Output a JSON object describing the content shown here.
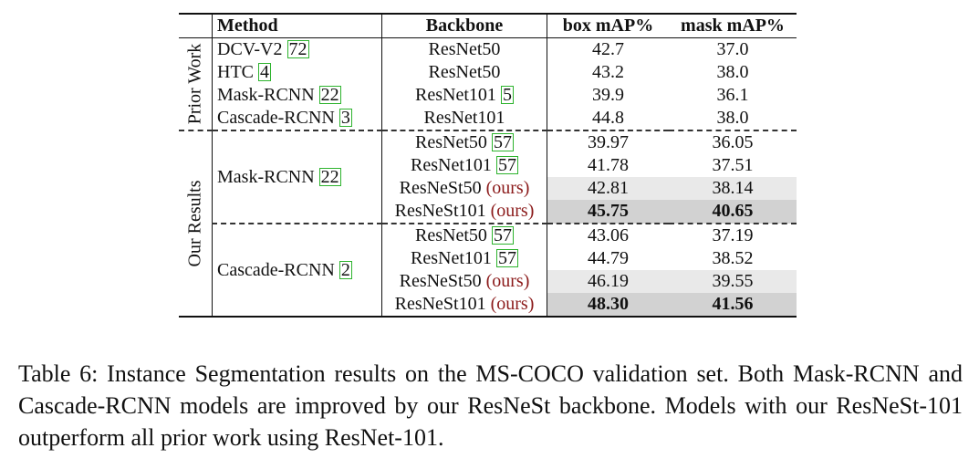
{
  "table": {
    "headers": {
      "method": "Method",
      "backbone": "Backbone",
      "box": "box mAP%",
      "mask": "mask mAP%"
    },
    "groups": {
      "prior": "Prior Work",
      "ours": "Our Results"
    },
    "prior_rows": [
      {
        "method": "DCV-V2",
        "cite": "72",
        "backbone": "ResNet50",
        "box": "42.7",
        "mask": "37.0"
      },
      {
        "method": "HTC",
        "cite": "4",
        "backbone": "ResNet50",
        "box": "43.2",
        "mask": "38.0"
      },
      {
        "method": "Mask-RCNN",
        "cite": "22",
        "backbone": "ResNet101",
        "backbone_cite": "5",
        "box": "39.9",
        "mask": "36.1"
      },
      {
        "method": "Cascade-RCNN",
        "cite": "3",
        "backbone": "ResNet101",
        "box": "44.8",
        "mask": "38.0"
      }
    ],
    "mask_group": {
      "method": "Mask-RCNN",
      "cite": "22",
      "rows": [
        {
          "backbone": "ResNet50",
          "backbone_cite": "57",
          "box": "39.97",
          "mask": "36.05"
        },
        {
          "backbone": "ResNet101",
          "backbone_cite": "57",
          "box": "41.78",
          "mask": "37.51"
        },
        {
          "backbone": "ResNeSt50",
          "ours": "(ours)",
          "box": "42.81",
          "mask": "38.14"
        },
        {
          "backbone": "ResNeSt101",
          "ours": "(ours)",
          "box": "45.75",
          "mask": "40.65"
        }
      ]
    },
    "cascade_group": {
      "method": "Cascade-RCNN",
      "cite": "2",
      "rows": [
        {
          "backbone": "ResNet50",
          "backbone_cite": "57",
          "box": "43.06",
          "mask": "37.19"
        },
        {
          "backbone": "ResNet101",
          "backbone_cite": "57",
          "box": "44.79",
          "mask": "38.52"
        },
        {
          "backbone": "ResNeSt50",
          "ours": "(ours)",
          "box": "46.19",
          "mask": "39.55"
        },
        {
          "backbone": "ResNeSt101",
          "ours": "(ours)",
          "box": "48.30",
          "mask": "41.56"
        }
      ]
    }
  },
  "caption": "Table 6: Instance Segmentation results on the MS-COCO validation set. Both Mask-RCNN and Cascade-RCNN models are improved by our ResNeSt backbone. Models with our ResNeSt-101 outperform all prior work using ResNet-101.",
  "colors": {
    "citation_box": "#2db32d",
    "ours_text": "#8b1a1a",
    "shade_light": "#e9e9e9",
    "shade_dark": "#d2d2d2"
  }
}
